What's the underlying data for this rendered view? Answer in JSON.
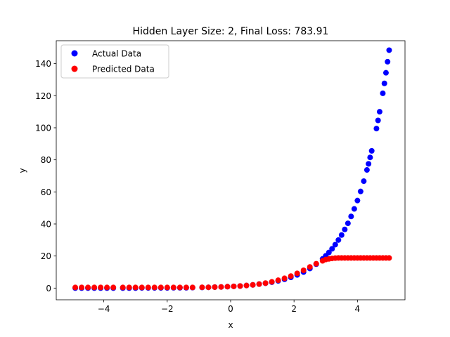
{
  "chart_data": {
    "type": "scatter",
    "title": "Hidden Layer Size: 2, Final Loss: 783.91",
    "xlabel": "x",
    "ylabel": "y",
    "xlim": [
      -5.5,
      5.5
    ],
    "ylim": [
      -7.3,
      154.3
    ],
    "xticks": [
      -4,
      -2,
      0,
      2,
      4
    ],
    "yticks": [
      0,
      20,
      40,
      60,
      80,
      100,
      120,
      140
    ],
    "tick_labels_x": [
      "−4",
      "−2",
      "0",
      "2",
      "4"
    ],
    "tick_labels_y": [
      "0",
      "20",
      "40",
      "60",
      "80",
      "100",
      "120",
      "140"
    ],
    "grid": false,
    "legend_position": "top-left",
    "series": [
      {
        "name": "Actual Data",
        "color": "#0000ff",
        "x": [
          -4.9,
          -4.7,
          -4.5,
          -4.3,
          -4.1,
          -3.9,
          -3.7,
          -3.4,
          -3.2,
          -3.0,
          -2.8,
          -2.6,
          -2.4,
          -2.2,
          -2.0,
          -1.8,
          -1.6,
          -1.4,
          -1.2,
          -0.9,
          -0.7,
          -0.5,
          -0.3,
          -0.1,
          0.1,
          0.3,
          0.5,
          0.7,
          0.9,
          1.1,
          1.3,
          1.5,
          1.7,
          1.9,
          2.1,
          2.3,
          2.5,
          2.7,
          2.9,
          3.0,
          3.1,
          3.2,
          3.3,
          3.4,
          3.5,
          3.6,
          3.7,
          3.8,
          3.9,
          4.0,
          4.1,
          4.2,
          4.3,
          4.35,
          4.4,
          4.45,
          4.6,
          4.65,
          4.7,
          4.8,
          4.85,
          4.9,
          4.95,
          5.0
        ],
        "y": [
          0.0,
          0.0,
          0.0,
          0.0,
          0.0,
          0.0,
          0.0,
          0.0,
          0.0,
          0.0,
          0.1,
          0.1,
          0.1,
          0.1,
          0.1,
          0.2,
          0.2,
          0.2,
          0.3,
          0.4,
          0.5,
          0.6,
          0.7,
          0.9,
          1.1,
          1.3,
          1.6,
          2.0,
          2.5,
          3.0,
          3.7,
          4.5,
          5.5,
          6.7,
          8.2,
          10.0,
          12.2,
          14.9,
          18.2,
          20.1,
          22.2,
          24.5,
          27.1,
          30.0,
          33.1,
          36.6,
          40.4,
          44.7,
          49.4,
          54.6,
          60.3,
          66.7,
          73.7,
          77.5,
          81.5,
          85.6,
          99.5,
          104.6,
          110.0,
          121.5,
          127.7,
          134.3,
          141.2,
          148.4
        ]
      },
      {
        "name": "Predicted Data",
        "color": "#ff0000",
        "x": [
          -4.9,
          -4.7,
          -4.5,
          -4.3,
          -4.1,
          -3.9,
          -3.7,
          -3.4,
          -3.2,
          -3.0,
          -2.8,
          -2.6,
          -2.4,
          -2.2,
          -2.0,
          -1.8,
          -1.6,
          -1.4,
          -1.2,
          -0.9,
          -0.7,
          -0.5,
          -0.3,
          -0.1,
          0.1,
          0.3,
          0.5,
          0.7,
          0.9,
          1.1,
          1.3,
          1.5,
          1.7,
          1.9,
          2.1,
          2.3,
          2.5,
          2.7,
          2.9,
          3.0,
          3.1,
          3.2,
          3.3,
          3.4,
          3.5,
          3.6,
          3.7,
          3.8,
          3.9,
          4.0,
          4.1,
          4.2,
          4.3,
          4.4,
          4.5,
          4.6,
          4.7,
          4.8,
          4.9,
          5.0
        ],
        "y": [
          0.4,
          0.4,
          0.4,
          0.4,
          0.4,
          0.4,
          0.4,
          0.4,
          0.4,
          0.4,
          0.4,
          0.4,
          0.4,
          0.4,
          0.4,
          0.4,
          0.4,
          0.4,
          0.4,
          0.5,
          0.5,
          0.6,
          0.7,
          0.9,
          1.1,
          1.3,
          1.6,
          2.0,
          2.5,
          3.1,
          3.9,
          4.9,
          6.1,
          7.5,
          9.2,
          11.1,
          13.2,
          15.2,
          17.0,
          17.8,
          18.2,
          18.5,
          18.7,
          18.8,
          18.8,
          18.8,
          18.8,
          18.8,
          18.8,
          18.8,
          18.8,
          18.8,
          18.8,
          18.8,
          18.8,
          18.8,
          18.8,
          18.8,
          18.8,
          18.8
        ]
      }
    ]
  }
}
